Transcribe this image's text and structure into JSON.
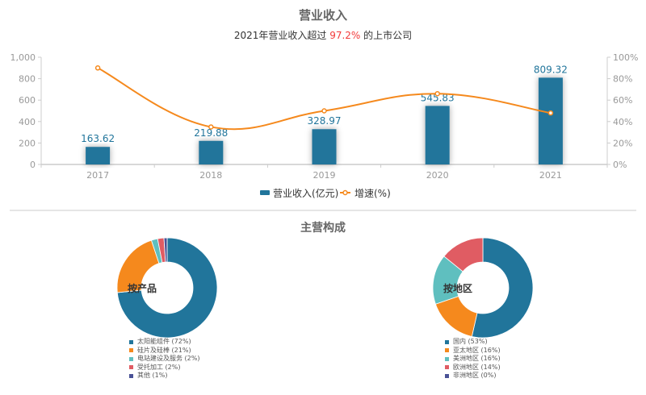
{
  "header": {
    "title": "营业收入",
    "subtitle_prefix": "2021年营业收入超过 ",
    "subtitle_highlight": "97.2%",
    "subtitle_suffix": " 的上市公司"
  },
  "section2": {
    "title": "主营构成"
  },
  "colors": {
    "bar": "#21759b",
    "line": "#f5891d",
    "axis": "#aaaaaa",
    "highlight": "#f23a3a",
    "pie": [
      "#21759b",
      "#f5891d",
      "#5fbfbf",
      "#e05c63",
      "#4a5296"
    ]
  },
  "chart_data": [
    {
      "type": "bar",
      "title": "营业收入",
      "subtitle": "2021年营业收入超过 97.2% 的上市公司",
      "categories": [
        "2017",
        "2018",
        "2019",
        "2020",
        "2021"
      ],
      "series": [
        {
          "name": "营业收入(亿元)",
          "type": "bar",
          "axis": "left",
          "values": [
            163.62,
            219.88,
            328.97,
            545.83,
            809.32
          ]
        },
        {
          "name": "增速(%)",
          "type": "line",
          "axis": "right",
          "smooth": true,
          "values": [
            90,
            35,
            50,
            66,
            48
          ]
        }
      ],
      "y_left": {
        "min": 0,
        "max": 1000,
        "ticks": [
          "0",
          "200",
          "400",
          "600",
          "800",
          "1,000"
        ]
      },
      "y_right": {
        "min": 0,
        "max": 100,
        "ticks": [
          "0%",
          "20%",
          "40%",
          "60%",
          "80%",
          "100%"
        ]
      },
      "legend": [
        "营业收入(亿元)",
        "增速(%)"
      ],
      "legend_position": "bottom",
      "grid": false
    },
    {
      "type": "pie",
      "title": "按产品",
      "donut": true,
      "labels": [
        "太阳能组件",
        "硅片及硅棒",
        "电站建设及服务",
        "受托加工",
        "其他"
      ],
      "values": [
        72,
        21,
        2,
        2,
        1
      ],
      "legend": [
        "太阳能组件 (72%)",
        "硅片及硅棒 (21%)",
        "电站建设及服务 (2%)",
        "受托加工 (2%)",
        "其他 (1%)"
      ]
    },
    {
      "type": "pie",
      "title": "按地区",
      "donut": true,
      "labels": [
        "国内",
        "亚太地区",
        "美洲地区",
        "欧洲地区",
        "非洲地区"
      ],
      "values": [
        53,
        16,
        16,
        14,
        0
      ],
      "legend": [
        "国内 (53%)",
        "亚太地区 (16%)",
        "美洲地区 (16%)",
        "欧洲地区 (14%)",
        "非洲地区 (0%)"
      ]
    }
  ]
}
